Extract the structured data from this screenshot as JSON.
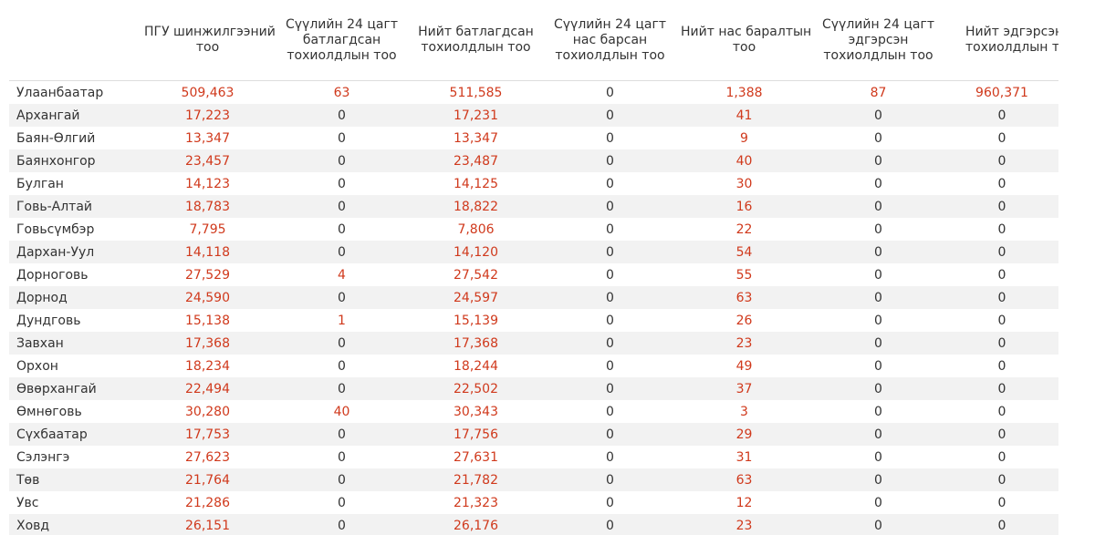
{
  "table": {
    "headers": [
      "",
      "ПГУ шинжилгээний тоо",
      "Сүүлийн 24 цагт батлагдсан тохиолдлын тоо",
      "Нийт батлагдсан тохиолдлын тоо",
      "Сүүлийн 24 цагт нас барсан тохиолдлын тоо",
      "Нийт нас баралтын тоо",
      "Сүүлийн 24 цагт эдгэрсэн тохиолдлын тоо",
      "Нийт эдгэрсэн тохиолдлын тоо"
    ],
    "header_lines": [
      [],
      [
        "ПГУ шинжилгээний",
        "тоо"
      ],
      [
        "Сүүлийн 24 цагт",
        "батлагдсан",
        "тохиолдлын тоо"
      ],
      [
        "Нийт батлагдсан",
        "тохиолдлын тоо"
      ],
      [
        "Сүүлийн 24 цагт",
        "нас барсан",
        "тохиолдлын тоо"
      ],
      [
        "Нийт нас баралтын",
        "тоо"
      ],
      [
        "Сүүлийн 24 цагт",
        "эдгэрсэн",
        "тохиолдлын тоо"
      ],
      [
        "Нийт эдгэрсэн",
        "тохиолдлын тоо"
      ]
    ],
    "rows": [
      [
        "Улаанбаатар",
        "509,463",
        "63",
        "511,585",
        "0",
        "1,388",
        "87",
        "960,371"
      ],
      [
        "Архангай",
        "17,223",
        "0",
        "17,231",
        "0",
        "41",
        "0",
        "0"
      ],
      [
        "Баян-Өлгий",
        "13,347",
        "0",
        "13,347",
        "0",
        "9",
        "0",
        "0"
      ],
      [
        "Баянхонгор",
        "23,457",
        "0",
        "23,487",
        "0",
        "40",
        "0",
        "0"
      ],
      [
        "Булган",
        "14,123",
        "0",
        "14,125",
        "0",
        "30",
        "0",
        "0"
      ],
      [
        "Говь-Алтай",
        "18,783",
        "0",
        "18,822",
        "0",
        "16",
        "0",
        "0"
      ],
      [
        "Говьсүмбэр",
        "7,795",
        "0",
        "7,806",
        "0",
        "22",
        "0",
        "0"
      ],
      [
        "Дархан-Уул",
        "14,118",
        "0",
        "14,120",
        "0",
        "54",
        "0",
        "0"
      ],
      [
        "Дорноговь",
        "27,529",
        "4",
        "27,542",
        "0",
        "55",
        "0",
        "0"
      ],
      [
        "Дорнод",
        "24,590",
        "0",
        "24,597",
        "0",
        "63",
        "0",
        "0"
      ],
      [
        "Дундговь",
        "15,138",
        "1",
        "15,139",
        "0",
        "26",
        "0",
        "0"
      ],
      [
        "Завхан",
        "17,368",
        "0",
        "17,368",
        "0",
        "23",
        "0",
        "0"
      ],
      [
        "Орхон",
        "18,234",
        "0",
        "18,244",
        "0",
        "49",
        "0",
        "0"
      ],
      [
        "Өвөрхангай",
        "22,494",
        "0",
        "22,502",
        "0",
        "37",
        "0",
        "0"
      ],
      [
        "Өмнөговь",
        "30,280",
        "40",
        "30,343",
        "0",
        "3",
        "0",
        "0"
      ],
      [
        "Сүхбаатар",
        "17,753",
        "0",
        "17,756",
        "0",
        "29",
        "0",
        "0"
      ],
      [
        "Сэлэнгэ",
        "27,623",
        "0",
        "27,631",
        "0",
        "31",
        "0",
        "0"
      ],
      [
        "Төв",
        "21,764",
        "0",
        "21,782",
        "0",
        "63",
        "0",
        "0"
      ],
      [
        "Увс",
        "21,286",
        "0",
        "21,323",
        "0",
        "12",
        "0",
        "0"
      ],
      [
        "Ховд",
        "26,151",
        "0",
        "26,176",
        "0",
        "23",
        "0",
        "0"
      ]
    ]
  },
  "colors": {
    "accent_number": "#d0391c",
    "text": "#333333",
    "row_stripe": "#f2f2f2"
  }
}
